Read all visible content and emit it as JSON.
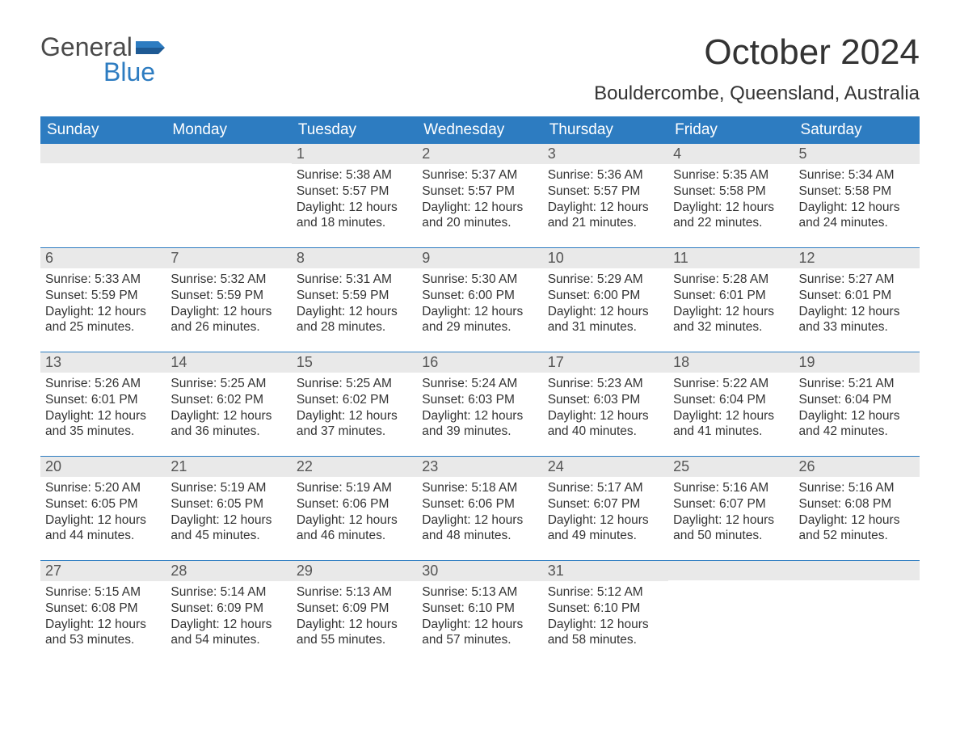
{
  "logo": {
    "word1": "General",
    "word2": "Blue"
  },
  "title": "October 2024",
  "location": "Bouldercombe, Queensland, Australia",
  "colors": {
    "header_bg": "#2d7cc1",
    "header_text": "#ffffff",
    "daynum_bg": "#e9e9e9",
    "daynum_text": "#555555",
    "body_text": "#333333",
    "border": "#2d7cc1",
    "logo_gray": "#4a4a4a",
    "logo_blue": "#2d7cc1",
    "background": "#ffffff"
  },
  "fonts": {
    "title_size_pt": 33,
    "location_size_pt": 18,
    "dow_size_pt": 14,
    "daynum_size_pt": 14,
    "body_size_pt": 12
  },
  "days_of_week": [
    "Sunday",
    "Monday",
    "Tuesday",
    "Wednesday",
    "Thursday",
    "Friday",
    "Saturday"
  ],
  "weeks": [
    [
      null,
      null,
      {
        "n": "1",
        "sunrise": "Sunrise: 5:38 AM",
        "sunset": "Sunset: 5:57 PM",
        "daylight": "Daylight: 12 hours and 18 minutes."
      },
      {
        "n": "2",
        "sunrise": "Sunrise: 5:37 AM",
        "sunset": "Sunset: 5:57 PM",
        "daylight": "Daylight: 12 hours and 20 minutes."
      },
      {
        "n": "3",
        "sunrise": "Sunrise: 5:36 AM",
        "sunset": "Sunset: 5:57 PM",
        "daylight": "Daylight: 12 hours and 21 minutes."
      },
      {
        "n": "4",
        "sunrise": "Sunrise: 5:35 AM",
        "sunset": "Sunset: 5:58 PM",
        "daylight": "Daylight: 12 hours and 22 minutes."
      },
      {
        "n": "5",
        "sunrise": "Sunrise: 5:34 AM",
        "sunset": "Sunset: 5:58 PM",
        "daylight": "Daylight: 12 hours and 24 minutes."
      }
    ],
    [
      {
        "n": "6",
        "sunrise": "Sunrise: 5:33 AM",
        "sunset": "Sunset: 5:59 PM",
        "daylight": "Daylight: 12 hours and 25 minutes."
      },
      {
        "n": "7",
        "sunrise": "Sunrise: 5:32 AM",
        "sunset": "Sunset: 5:59 PM",
        "daylight": "Daylight: 12 hours and 26 minutes."
      },
      {
        "n": "8",
        "sunrise": "Sunrise: 5:31 AM",
        "sunset": "Sunset: 5:59 PM",
        "daylight": "Daylight: 12 hours and 28 minutes."
      },
      {
        "n": "9",
        "sunrise": "Sunrise: 5:30 AM",
        "sunset": "Sunset: 6:00 PM",
        "daylight": "Daylight: 12 hours and 29 minutes."
      },
      {
        "n": "10",
        "sunrise": "Sunrise: 5:29 AM",
        "sunset": "Sunset: 6:00 PM",
        "daylight": "Daylight: 12 hours and 31 minutes."
      },
      {
        "n": "11",
        "sunrise": "Sunrise: 5:28 AM",
        "sunset": "Sunset: 6:01 PM",
        "daylight": "Daylight: 12 hours and 32 minutes."
      },
      {
        "n": "12",
        "sunrise": "Sunrise: 5:27 AM",
        "sunset": "Sunset: 6:01 PM",
        "daylight": "Daylight: 12 hours and 33 minutes."
      }
    ],
    [
      {
        "n": "13",
        "sunrise": "Sunrise: 5:26 AM",
        "sunset": "Sunset: 6:01 PM",
        "daylight": "Daylight: 12 hours and 35 minutes."
      },
      {
        "n": "14",
        "sunrise": "Sunrise: 5:25 AM",
        "sunset": "Sunset: 6:02 PM",
        "daylight": "Daylight: 12 hours and 36 minutes."
      },
      {
        "n": "15",
        "sunrise": "Sunrise: 5:25 AM",
        "sunset": "Sunset: 6:02 PM",
        "daylight": "Daylight: 12 hours and 37 minutes."
      },
      {
        "n": "16",
        "sunrise": "Sunrise: 5:24 AM",
        "sunset": "Sunset: 6:03 PM",
        "daylight": "Daylight: 12 hours and 39 minutes."
      },
      {
        "n": "17",
        "sunrise": "Sunrise: 5:23 AM",
        "sunset": "Sunset: 6:03 PM",
        "daylight": "Daylight: 12 hours and 40 minutes."
      },
      {
        "n": "18",
        "sunrise": "Sunrise: 5:22 AM",
        "sunset": "Sunset: 6:04 PM",
        "daylight": "Daylight: 12 hours and 41 minutes."
      },
      {
        "n": "19",
        "sunrise": "Sunrise: 5:21 AM",
        "sunset": "Sunset: 6:04 PM",
        "daylight": "Daylight: 12 hours and 42 minutes."
      }
    ],
    [
      {
        "n": "20",
        "sunrise": "Sunrise: 5:20 AM",
        "sunset": "Sunset: 6:05 PM",
        "daylight": "Daylight: 12 hours and 44 minutes."
      },
      {
        "n": "21",
        "sunrise": "Sunrise: 5:19 AM",
        "sunset": "Sunset: 6:05 PM",
        "daylight": "Daylight: 12 hours and 45 minutes."
      },
      {
        "n": "22",
        "sunrise": "Sunrise: 5:19 AM",
        "sunset": "Sunset: 6:06 PM",
        "daylight": "Daylight: 12 hours and 46 minutes."
      },
      {
        "n": "23",
        "sunrise": "Sunrise: 5:18 AM",
        "sunset": "Sunset: 6:06 PM",
        "daylight": "Daylight: 12 hours and 48 minutes."
      },
      {
        "n": "24",
        "sunrise": "Sunrise: 5:17 AM",
        "sunset": "Sunset: 6:07 PM",
        "daylight": "Daylight: 12 hours and 49 minutes."
      },
      {
        "n": "25",
        "sunrise": "Sunrise: 5:16 AM",
        "sunset": "Sunset: 6:07 PM",
        "daylight": "Daylight: 12 hours and 50 minutes."
      },
      {
        "n": "26",
        "sunrise": "Sunrise: 5:16 AM",
        "sunset": "Sunset: 6:08 PM",
        "daylight": "Daylight: 12 hours and 52 minutes."
      }
    ],
    [
      {
        "n": "27",
        "sunrise": "Sunrise: 5:15 AM",
        "sunset": "Sunset: 6:08 PM",
        "daylight": "Daylight: 12 hours and 53 minutes."
      },
      {
        "n": "28",
        "sunrise": "Sunrise: 5:14 AM",
        "sunset": "Sunset: 6:09 PM",
        "daylight": "Daylight: 12 hours and 54 minutes."
      },
      {
        "n": "29",
        "sunrise": "Sunrise: 5:13 AM",
        "sunset": "Sunset: 6:09 PM",
        "daylight": "Daylight: 12 hours and 55 minutes."
      },
      {
        "n": "30",
        "sunrise": "Sunrise: 5:13 AM",
        "sunset": "Sunset: 6:10 PM",
        "daylight": "Daylight: 12 hours and 57 minutes."
      },
      {
        "n": "31",
        "sunrise": "Sunrise: 5:12 AM",
        "sunset": "Sunset: 6:10 PM",
        "daylight": "Daylight: 12 hours and 58 minutes."
      },
      null,
      null
    ]
  ]
}
